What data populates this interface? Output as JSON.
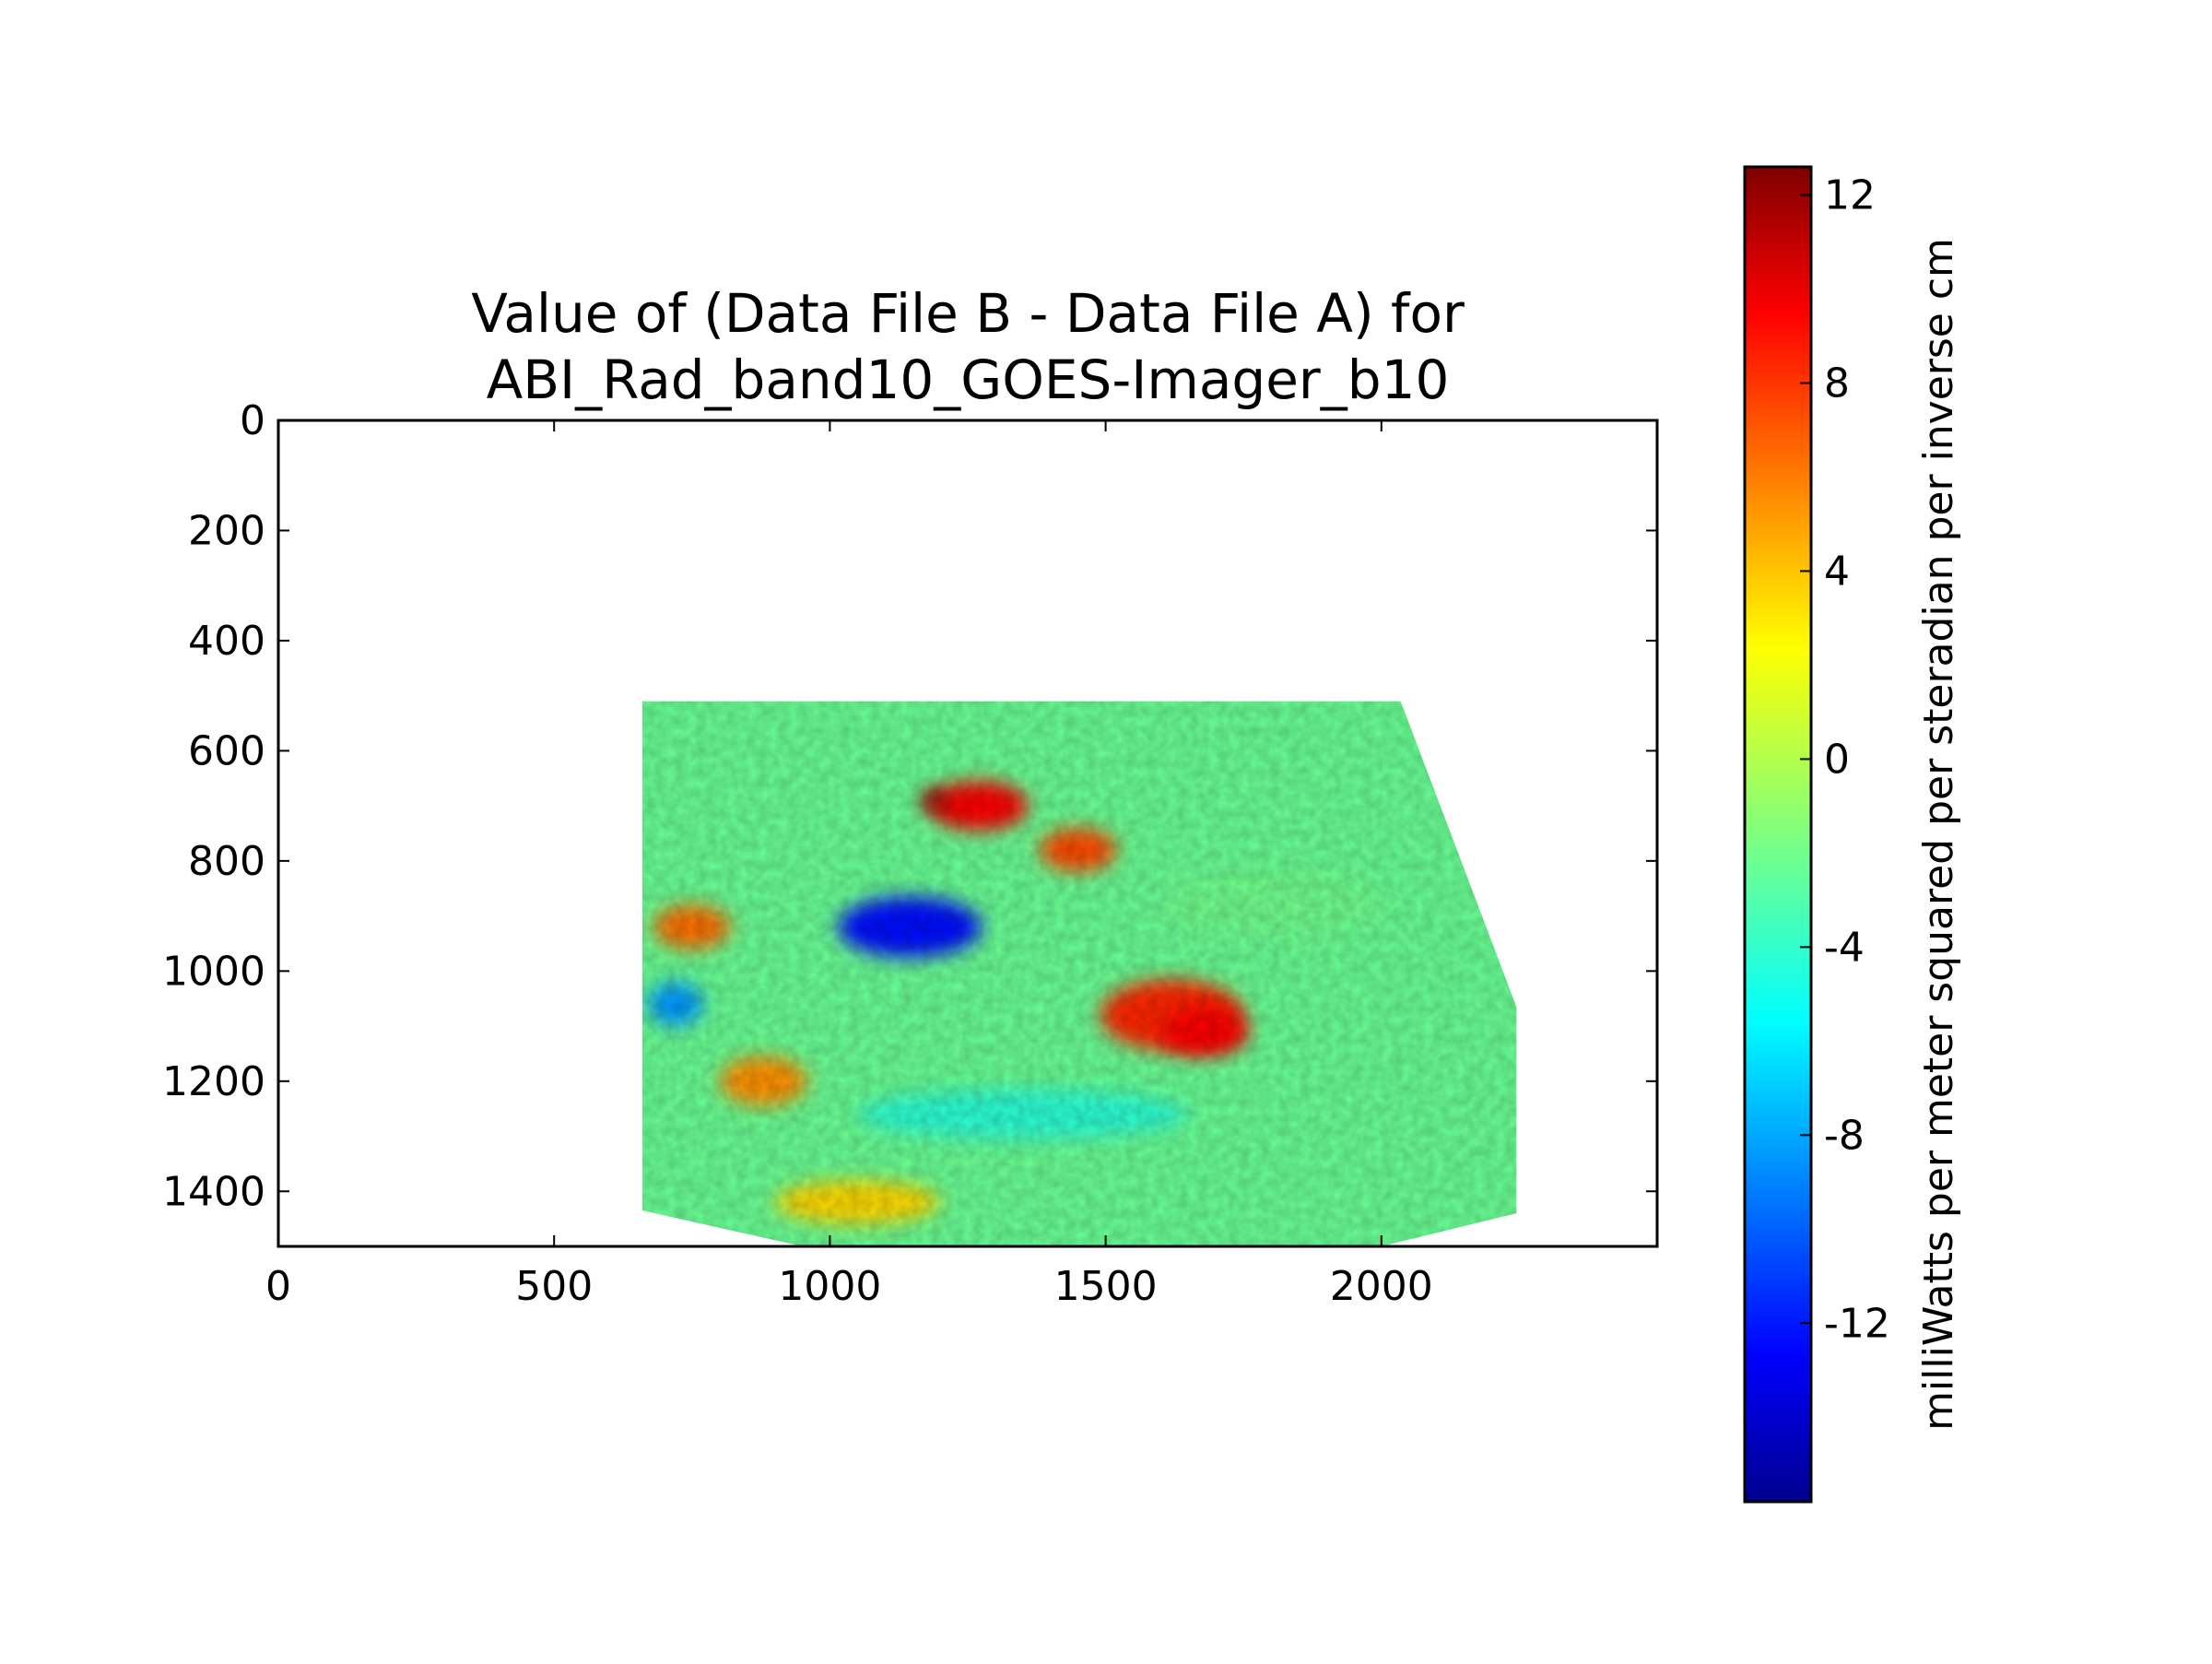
{
  "chart_data": {
    "type": "heatmap",
    "title_lines": [
      "Value of (Data File B - Data File A) for",
      "ABI_Rad_band10_GOES-Imager_b10"
    ],
    "xlabel": "",
    "ylabel": "",
    "xlim": [
      0,
      2500
    ],
    "ylim": [
      1500,
      0
    ],
    "x_ticks": [
      0,
      500,
      1000,
      1500,
      2000
    ],
    "y_ticks": [
      0,
      200,
      400,
      600,
      800,
      1000,
      1200,
      1400
    ],
    "grid": false,
    "colormap": "jet",
    "colorbar": {
      "label": "milliWatts per meter squared per steradian per inverse cm",
      "vmin": -15.8,
      "vmax": 12.6,
      "ticks": [
        12,
        8,
        4,
        0,
        -4,
        -8,
        -12
      ]
    },
    "data_extent": {
      "outline": [
        [
          660,
          510
        ],
        [
          2035,
          510
        ],
        [
          2245,
          1065
        ],
        [
          2245,
          1440
        ],
        [
          2000,
          1500
        ],
        [
          950,
          1500
        ],
        [
          660,
          1435
        ]
      ]
    },
    "features": [
      {
        "description": "",
        "center": [
          1270,
          700
        ],
        "radii": [
          90,
          45
        ],
        "value": 9
      },
      {
        "description": "",
        "center": [
          1190,
          690
        ],
        "radii": [
          25,
          22
        ],
        "value": 12
      },
      {
        "description": "",
        "center": [
          1145,
          920
        ],
        "radii": [
          130,
          55
        ],
        "value": -12
      },
      {
        "description": "",
        "center": [
          1620,
          1080
        ],
        "radii": [
          130,
          65
        ],
        "value": 8
      },
      {
        "description": "",
        "center": [
          1680,
          1110
        ],
        "radii": [
          80,
          45
        ],
        "value": 9
      },
      {
        "description": "",
        "center": [
          1450,
          780
        ],
        "radii": [
          70,
          40
        ],
        "value": 7
      },
      {
        "description": "",
        "center": [
          750,
          920
        ],
        "radii": [
          70,
          40
        ],
        "value": 6
      },
      {
        "description": "",
        "center": [
          880,
          1200
        ],
        "radii": [
          80,
          45
        ],
        "value": 5
      },
      {
        "description": "",
        "center": [
          1350,
          1260
        ],
        "radii": [
          300,
          45
        ],
        "value": -4
      },
      {
        "description": "",
        "center": [
          1050,
          1420
        ],
        "radii": [
          150,
          40
        ],
        "value": 3
      },
      {
        "description": "",
        "center": [
          720,
          1060
        ],
        "radii": [
          50,
          40
        ],
        "value": -8
      },
      {
        "description": "",
        "center": [
          1800,
          880
        ],
        "radii": [
          200,
          60
        ],
        "value": -2
      }
    ]
  }
}
